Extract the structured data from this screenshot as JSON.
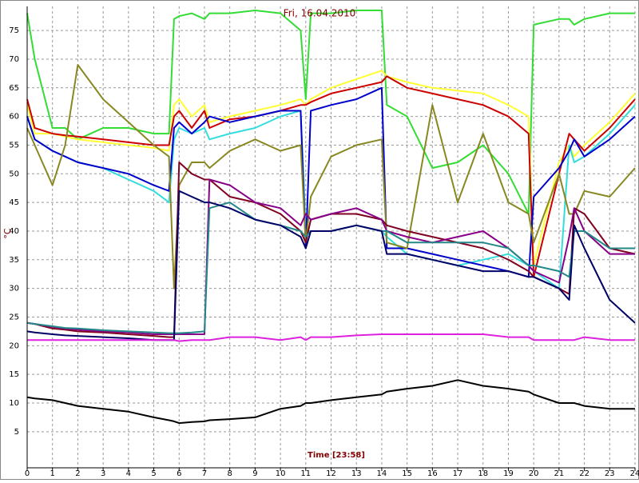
{
  "chart_data": {
    "type": "line",
    "title": "Fri, 16.04.2010",
    "x_label": "Time [23:58]",
    "y_label": "°C",
    "x": [
      0,
      0.3,
      1,
      1.5,
      2,
      3,
      4,
      5,
      5.6,
      5.8,
      6,
      6.5,
      7,
      7.2,
      8,
      9,
      10,
      10.8,
      11,
      11.2,
      12,
      13,
      14,
      14.2,
      15,
      16,
      17,
      18,
      19,
      19.8,
      20,
      21,
      21.4,
      21.6,
      22,
      23,
      24
    ],
    "xlim": [
      0,
      24
    ],
    "xticks": [
      0,
      1,
      2,
      3,
      4,
      5,
      6,
      7,
      8,
      9,
      10,
      11,
      12,
      13,
      14,
      15,
      16,
      17,
      18,
      19,
      20,
      21,
      22,
      23,
      24
    ],
    "ylim": [
      -1.3,
      79.2
    ],
    "yticks": [
      5,
      10,
      15,
      20,
      25,
      30,
      35,
      40,
      45,
      50,
      55,
      60,
      65,
      70,
      75
    ],
    "grid": true,
    "series": [
      {
        "color": "#33dd33",
        "values": [
          78,
          70,
          58,
          58,
          56,
          58,
          58,
          57,
          57,
          77,
          77.5,
          78,
          77,
          78,
          78,
          78.5,
          78,
          75,
          63,
          78,
          78,
          78.5,
          78.5,
          62,
          60,
          51,
          52,
          55,
          50,
          43,
          76,
          77,
          77,
          76,
          77,
          78,
          78
        ]
      },
      {
        "color": "#ffff33",
        "values": [
          62,
          57,
          57,
          56.5,
          56,
          55.5,
          55,
          54.5,
          54,
          62,
          63,
          60,
          62,
          59,
          60,
          61,
          62,
          63,
          62,
          63,
          65,
          66.5,
          68,
          67,
          66,
          65,
          64.5,
          64,
          62,
          60,
          34,
          52,
          55,
          53,
          55,
          59,
          64
        ]
      },
      {
        "color": "#cc0000",
        "values": [
          63,
          58,
          57,
          56.7,
          56.5,
          56,
          55.5,
          55,
          55,
          60,
          61,
          58,
          61,
          58,
          59.5,
          60,
          61,
          62,
          62,
          62.5,
          64,
          65,
          66,
          67,
          65,
          64,
          63,
          62,
          60,
          57,
          32,
          50,
          57,
          56,
          54,
          58,
          63
        ]
      },
      {
        "color": "#33dddd",
        "values": [
          60,
          56,
          54,
          53,
          52,
          51,
          49,
          47,
          45,
          56,
          58,
          57,
          58,
          56,
          57,
          58,
          60,
          61,
          40,
          40,
          40,
          41,
          40,
          39,
          36,
          35,
          34,
          35,
          36,
          34,
          33,
          30,
          55,
          52,
          53,
          57,
          62
        ]
      },
      {
        "color": "#0000cc",
        "values": [
          60,
          56,
          54,
          53,
          52,
          51,
          50,
          48,
          47,
          58,
          59,
          57,
          59,
          60,
          59,
          60,
          61,
          61,
          37,
          61,
          62,
          63,
          65,
          37,
          37,
          36,
          35,
          34,
          33,
          32,
          46,
          51,
          54,
          56,
          53,
          56,
          60
        ]
      },
      {
        "color": "#888822",
        "values": [
          58,
          55,
          48,
          55,
          69,
          63,
          59,
          55,
          53,
          30,
          48,
          52,
          52,
          51,
          54,
          56,
          54,
          55,
          38,
          46,
          53,
          55,
          56,
          38,
          37,
          62,
          45,
          57,
          45,
          43,
          38,
          50,
          43,
          43,
          47,
          46,
          51
        ]
      },
      {
        "color": "#800020",
        "values": [
          24,
          23.8,
          23,
          22.8,
          22.5,
          22.3,
          22,
          21.7,
          21.5,
          21.5,
          52,
          50,
          49,
          49,
          46,
          45,
          43,
          40,
          38,
          42,
          43,
          43,
          42,
          41,
          40,
          39,
          38,
          37,
          35,
          33,
          32,
          30,
          29,
          44,
          43,
          37,
          36
        ]
      },
      {
        "color": "#880088",
        "values": [
          24,
          23.8,
          23.3,
          23,
          22.8,
          22.5,
          22.3,
          22,
          22,
          22,
          22,
          22,
          22,
          49,
          48,
          45,
          44,
          41,
          43,
          42,
          43,
          44,
          42,
          40,
          39,
          38,
          39,
          40,
          37,
          34,
          33,
          31,
          39,
          44,
          40,
          36,
          36
        ]
      },
      {
        "color": "#228888",
        "values": [
          24,
          23.8,
          23.4,
          23.1,
          23,
          22.7,
          22.5,
          22.3,
          22.2,
          22.2,
          22.2,
          22.3,
          22.5,
          44,
          45,
          42,
          41,
          40,
          39,
          40,
          40,
          41,
          40,
          40,
          38,
          38,
          38,
          38,
          37,
          34,
          34,
          33,
          32,
          40,
          40,
          37,
          37
        ]
      },
      {
        "color": "#000066",
        "values": [
          22.5,
          22.3,
          22,
          21.8,
          21.7,
          21.5,
          21.3,
          21,
          21,
          21,
          47,
          46,
          45,
          45,
          44,
          42,
          41,
          39,
          37,
          40,
          40,
          41,
          40,
          36,
          36,
          35,
          34,
          33,
          33,
          32,
          32,
          30,
          28,
          41,
          37,
          28,
          24
        ]
      },
      {
        "color": "#dd22dd",
        "values": [
          21,
          21,
          21,
          21,
          21,
          21,
          21,
          21,
          21,
          21,
          20.8,
          21,
          21,
          21,
          21.5,
          21.5,
          21,
          21.5,
          21,
          21.5,
          21.5,
          21.8,
          22,
          22,
          22,
          22,
          22,
          22,
          21.5,
          21.5,
          21,
          21,
          21,
          21,
          21.5,
          21,
          21
        ]
      },
      {
        "color": "#000000",
        "values": [
          11,
          10.8,
          10.5,
          10,
          9.5,
          9,
          8.5,
          7.5,
          7,
          6.8,
          6.5,
          6.7,
          6.8,
          7,
          7.2,
          7.5,
          9,
          9.5,
          10,
          10,
          10.5,
          11,
          11.5,
          12,
          12.5,
          13,
          14,
          13,
          12.5,
          12,
          11.5,
          10,
          10,
          10,
          9.5,
          9,
          9
        ]
      }
    ]
  }
}
